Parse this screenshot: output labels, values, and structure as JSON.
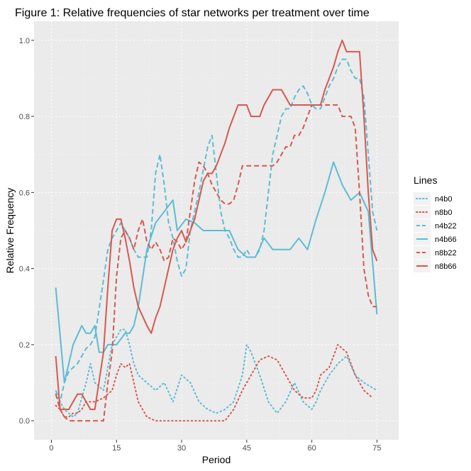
{
  "chart_data": {
    "type": "line",
    "title": "Figure 1: Relative frequencies of star networks per treatment over time",
    "xlabel": "Period",
    "ylabel": "Relative Frequency",
    "xlim": [
      -4,
      80
    ],
    "ylim": [
      -0.05,
      1.05
    ],
    "x_ticks": [
      0,
      15,
      30,
      45,
      60,
      75
    ],
    "y_ticks": [
      0.0,
      0.2,
      0.4,
      0.6,
      0.8,
      1.0
    ],
    "x_tick_labels": [
      "0",
      "15",
      "30",
      "45",
      "60",
      "75"
    ],
    "y_tick_labels": [
      "0.0",
      "0.2",
      "0.4",
      "0.6",
      "0.8",
      "1.0"
    ],
    "grid": true,
    "legend": {
      "title": "Lines",
      "position": "right"
    },
    "series": [
      {
        "name": "n4b0",
        "color": "#5bbcd6",
        "dash": "dotted",
        "x": [
          1,
          2,
          3,
          4,
          5,
          6,
          7,
          8,
          9,
          10,
          12,
          14,
          15,
          16,
          17,
          18,
          19,
          20,
          22,
          24,
          26,
          28,
          30,
          32,
          34,
          36,
          38,
          40,
          42,
          44,
          45,
          46,
          48,
          50,
          52,
          54,
          56,
          58,
          60,
          61,
          62,
          64,
          66,
          67,
          68,
          70,
          72,
          75
        ],
        "y": [
          0.07,
          0.05,
          0.03,
          0.02,
          0.01,
          0.02,
          0.06,
          0.1,
          0.15,
          0.1,
          0.08,
          0.2,
          0.22,
          0.24,
          0.24,
          0.2,
          0.15,
          0.12,
          0.1,
          0.08,
          0.1,
          0.05,
          0.12,
          0.1,
          0.05,
          0.03,
          0.02,
          0.03,
          0.05,
          0.12,
          0.2,
          0.18,
          0.12,
          0.05,
          0.02,
          0.05,
          0.1,
          0.05,
          0.03,
          0.05,
          0.08,
          0.12,
          0.15,
          0.16,
          0.17,
          0.12,
          0.1,
          0.08
        ]
      },
      {
        "name": "n8b0",
        "color": "#d6584f",
        "dash": "dotted",
        "x": [
          1,
          2,
          3,
          4,
          5,
          6,
          7,
          8,
          9,
          10,
          12,
          14,
          15,
          16,
          17,
          18,
          19,
          20,
          22,
          24,
          26,
          28,
          30,
          32,
          34,
          36,
          38,
          40,
          42,
          44,
          45,
          46,
          48,
          50,
          52,
          54,
          56,
          58,
          60,
          61,
          62,
          64,
          66,
          67,
          68,
          70,
          72,
          74
        ],
        "y": [
          0.04,
          0.03,
          0.01,
          0.01,
          0.02,
          0.02,
          0.03,
          0.05,
          0.05,
          0.05,
          0.06,
          0.08,
          0.12,
          0.15,
          0.14,
          0.15,
          0.1,
          0.05,
          0.01,
          0.0,
          0.0,
          0.0,
          0.0,
          0.0,
          0.0,
          0.0,
          0.0,
          0.0,
          0.03,
          0.08,
          0.1,
          0.12,
          0.16,
          0.17,
          0.16,
          0.12,
          0.08,
          0.06,
          0.06,
          0.08,
          0.12,
          0.14,
          0.2,
          0.19,
          0.18,
          0.12,
          0.08,
          0.06
        ]
      },
      {
        "name": "n4b22",
        "color": "#5bbcd6",
        "dash": "dashed",
        "x": [
          1,
          2,
          3,
          4,
          5,
          6,
          7,
          8,
          9,
          10,
          12,
          13,
          14,
          15,
          16,
          17,
          18,
          19,
          20,
          22,
          23,
          24,
          25,
          26,
          27,
          28,
          29,
          30,
          31,
          32,
          33,
          34,
          35,
          36,
          37,
          38,
          39,
          40,
          41,
          42,
          43,
          44,
          45,
          46,
          47,
          48,
          49,
          50,
          51,
          52,
          53,
          54,
          55,
          56,
          57,
          58,
          59,
          60,
          61,
          62,
          63,
          64,
          65,
          66,
          67,
          68,
          69,
          70,
          71,
          72,
          73,
          74,
          75
        ],
        "y": [
          0.08,
          0.05,
          0.1,
          0.13,
          0.14,
          0.15,
          0.17,
          0.19,
          0.2,
          0.22,
          0.37,
          0.45,
          0.48,
          0.5,
          0.52,
          0.5,
          0.48,
          0.45,
          0.43,
          0.43,
          0.5,
          0.65,
          0.7,
          0.62,
          0.52,
          0.48,
          0.42,
          0.38,
          0.4,
          0.5,
          0.55,
          0.6,
          0.66,
          0.72,
          0.75,
          0.65,
          0.55,
          0.5,
          0.48,
          0.45,
          0.43,
          0.43,
          0.45,
          0.43,
          0.43,
          0.45,
          0.5,
          0.6,
          0.7,
          0.75,
          0.8,
          0.82,
          0.82,
          0.85,
          0.87,
          0.88,
          0.86,
          0.83,
          0.82,
          0.82,
          0.85,
          0.88,
          0.9,
          0.93,
          0.95,
          0.95,
          0.92,
          0.9,
          0.9,
          0.85,
          0.7,
          0.55,
          0.5
        ]
      },
      {
        "name": "n4b66",
        "color": "#5bbcd6",
        "dash": "solid",
        "x": [
          1,
          3,
          5,
          7,
          8,
          9,
          10,
          11,
          12,
          13,
          15,
          17,
          18,
          19,
          20,
          22,
          24,
          26,
          28,
          29,
          31,
          33,
          35,
          37,
          39,
          41,
          43,
          45,
          47,
          49,
          51,
          53,
          55,
          57,
          59,
          61,
          63,
          65,
          67,
          69,
          71,
          73,
          75
        ],
        "y": [
          0.35,
          0.1,
          0.2,
          0.25,
          0.23,
          0.23,
          0.25,
          0.18,
          0.18,
          0.2,
          0.2,
          0.23,
          0.23,
          0.25,
          0.3,
          0.45,
          0.52,
          0.55,
          0.58,
          0.5,
          0.53,
          0.52,
          0.5,
          0.5,
          0.5,
          0.5,
          0.45,
          0.43,
          0.43,
          0.48,
          0.45,
          0.45,
          0.45,
          0.48,
          0.45,
          0.53,
          0.6,
          0.68,
          0.62,
          0.58,
          0.6,
          0.55,
          0.28
        ]
      },
      {
        "name": "n8b22",
        "color": "#d6584f",
        "dash": "dashed",
        "x": [
          1,
          2,
          3,
          4,
          5,
          6,
          7,
          8,
          9,
          10,
          11,
          12,
          13,
          14,
          15,
          16,
          17,
          18,
          19,
          20,
          21,
          22,
          23,
          24,
          25,
          26,
          27,
          28,
          29,
          30,
          31,
          32,
          33,
          34,
          35,
          36,
          37,
          38,
          39,
          40,
          41,
          42,
          43,
          44,
          45,
          46,
          47,
          48,
          49,
          50,
          51,
          52,
          53,
          54,
          55,
          56,
          57,
          58,
          59,
          60,
          61,
          62,
          63,
          64,
          65,
          66,
          67,
          68,
          69,
          70,
          71,
          72,
          73,
          74,
          75
        ],
        "y": [
          0.07,
          0.03,
          0.01,
          0.0,
          0.0,
          0.0,
          0.0,
          0.0,
          0.0,
          0.0,
          0.0,
          0.0,
          0.1,
          0.18,
          0.38,
          0.48,
          0.5,
          0.48,
          0.45,
          0.5,
          0.53,
          0.47,
          0.45,
          0.47,
          0.45,
          0.42,
          0.43,
          0.48,
          0.47,
          0.45,
          0.47,
          0.55,
          0.63,
          0.68,
          0.67,
          0.65,
          0.62,
          0.6,
          0.58,
          0.57,
          0.57,
          0.58,
          0.62,
          0.67,
          0.67,
          0.67,
          0.67,
          0.67,
          0.67,
          0.67,
          0.67,
          0.68,
          0.7,
          0.72,
          0.72,
          0.75,
          0.75,
          0.77,
          0.8,
          0.83,
          0.83,
          0.83,
          0.83,
          0.83,
          0.83,
          0.83,
          0.8,
          0.8,
          0.8,
          0.77,
          0.6,
          0.4,
          0.33,
          0.3,
          0.3
        ]
      },
      {
        "name": "n8b66",
        "color": "#d6584f",
        "dash": "solid",
        "x": [
          1,
          2,
          4,
          6,
          7,
          8,
          9,
          10,
          12,
          13,
          14,
          15,
          16,
          17,
          18,
          19,
          20,
          22,
          23,
          24,
          25,
          26,
          27,
          28,
          29,
          30,
          31,
          32,
          33,
          34,
          35,
          36,
          37,
          38,
          39,
          40,
          41,
          42,
          43,
          44,
          45,
          46,
          47,
          48,
          49,
          50,
          51,
          52,
          53,
          54,
          55,
          56,
          57,
          58,
          59,
          60,
          61,
          62,
          63,
          64,
          65,
          66,
          67,
          68,
          69,
          70,
          71,
          72,
          73,
          74,
          75
        ],
        "y": [
          0.17,
          0.03,
          0.03,
          0.07,
          0.07,
          0.05,
          0.03,
          0.03,
          0.18,
          0.35,
          0.5,
          0.53,
          0.53,
          0.48,
          0.42,
          0.35,
          0.3,
          0.25,
          0.23,
          0.27,
          0.3,
          0.35,
          0.4,
          0.45,
          0.48,
          0.5,
          0.47,
          0.5,
          0.53,
          0.58,
          0.63,
          0.65,
          0.65,
          0.67,
          0.7,
          0.73,
          0.77,
          0.8,
          0.83,
          0.83,
          0.83,
          0.8,
          0.8,
          0.8,
          0.83,
          0.85,
          0.87,
          0.87,
          0.87,
          0.85,
          0.83,
          0.83,
          0.83,
          0.83,
          0.83,
          0.83,
          0.83,
          0.83,
          0.87,
          0.9,
          0.93,
          0.97,
          1.0,
          0.97,
          0.97,
          0.97,
          0.97,
          0.8,
          0.6,
          0.45,
          0.42
        ]
      }
    ]
  }
}
